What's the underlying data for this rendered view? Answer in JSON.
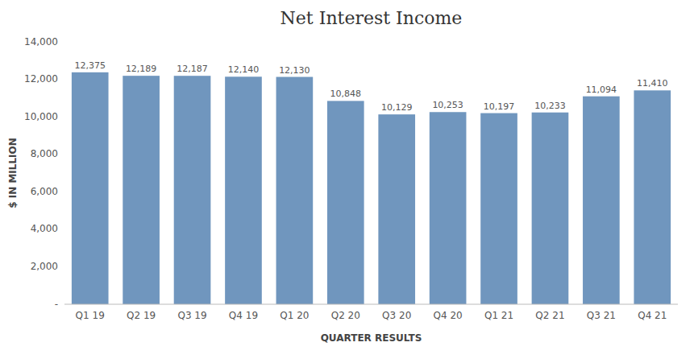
{
  "chart_data": {
    "type": "bar",
    "title": "Net Interest Income",
    "xlabel": "QUARTER RESULTS",
    "ylabel": "$ IN MILLION",
    "categories": [
      "Q1 19",
      "Q2 19",
      "Q3 19",
      "Q4 19",
      "Q1 20",
      "Q2 20",
      "Q3 20",
      "Q4 20",
      "Q1 21",
      "Q2 21",
      "Q3 21",
      "Q4 21"
    ],
    "values": [
      12375,
      12189,
      12187,
      12140,
      12130,
      10848,
      10129,
      10253,
      10197,
      10233,
      11094,
      11410
    ],
    "value_labels": [
      "12,375",
      "12,189",
      "12,187",
      "12,140",
      "12,130",
      "10,848",
      "10,129",
      "10,253",
      "10,197",
      "10,233",
      "11,094",
      "11,410"
    ],
    "data_labels": true,
    "color": "#7096be",
    "ylim": [
      0,
      14000
    ],
    "yticks": [
      {
        "value": 0,
        "label": "-"
      },
      {
        "value": 2000,
        "label": "2,000"
      },
      {
        "value": 4000,
        "label": "4,000"
      },
      {
        "value": 6000,
        "label": "6,000"
      },
      {
        "value": 8000,
        "label": "8,000"
      },
      {
        "value": 10000,
        "label": "10,000"
      },
      {
        "value": 12000,
        "label": "12,000"
      },
      {
        "value": 14000,
        "label": "14,000"
      }
    ],
    "grid": false
  }
}
